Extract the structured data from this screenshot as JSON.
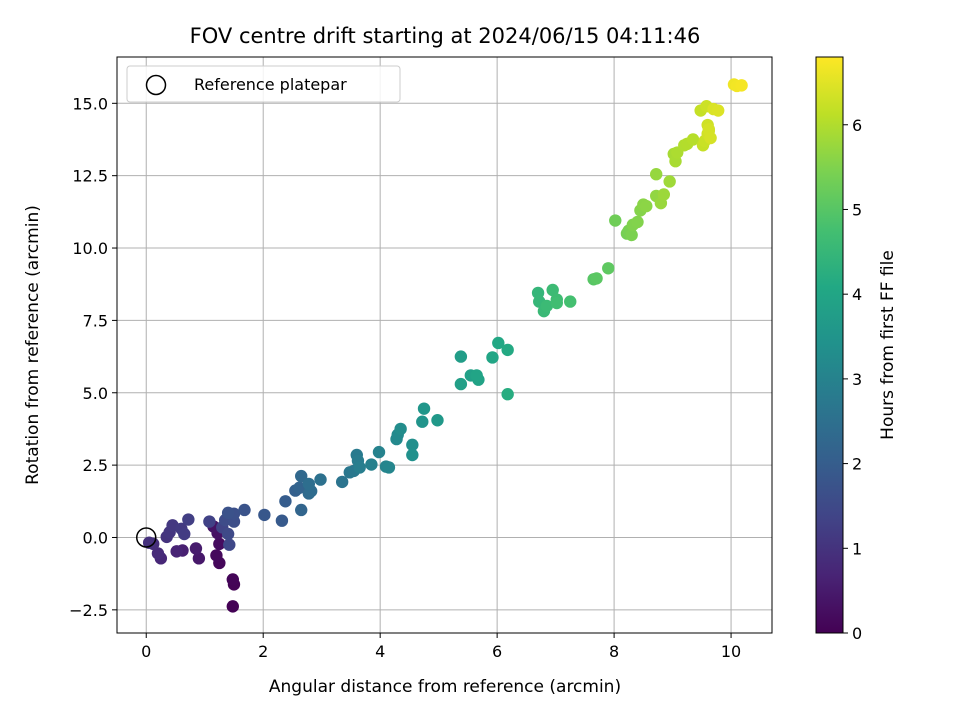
{
  "chart_data": {
    "type": "scatter",
    "title": "FOV centre drift starting at 2024/06/15 04:11:46",
    "xlabel": "Angular distance from reference (arcmin)",
    "ylabel": "Rotation from reference (arcmin)",
    "xlim": [
      -0.5,
      10.7
    ],
    "ylim": [
      -3.3,
      16.6
    ],
    "xticks": [
      "0",
      "2",
      "4",
      "6",
      "8",
      "10"
    ],
    "xtick_values": [
      0,
      2,
      4,
      6,
      8,
      10
    ],
    "yticks": [
      "−2.5",
      "0.0",
      "2.5",
      "5.0",
      "7.5",
      "10.0",
      "12.5",
      "15.0"
    ],
    "ytick_values": [
      -2.5,
      0,
      2.5,
      5,
      7.5,
      10,
      12.5,
      15
    ],
    "grid": true,
    "legend": {
      "position": "top-left",
      "label": "Reference platepar"
    },
    "reference_point": {
      "x": 0,
      "y": 0
    },
    "colorbar": {
      "label": "Hours from first FF file",
      "range": [
        0,
        6.8
      ],
      "ticks": [
        "0",
        "1",
        "2",
        "3",
        "4",
        "5",
        "6"
      ],
      "tick_values": [
        0,
        1,
        2,
        3,
        4,
        5,
        6
      ],
      "colormap": "viridis"
    },
    "points": [
      [
        1.48,
        -2.38,
        0.02
      ],
      [
        1.5,
        -1.62,
        0.05
      ],
      [
        1.48,
        -1.45,
        0.08
      ],
      [
        1.25,
        -0.88,
        0.12
      ],
      [
        1.2,
        -0.62,
        0.16
      ],
      [
        1.25,
        -0.22,
        0.22
      ],
      [
        1.22,
        0.15,
        0.3
      ],
      [
        1.15,
        0.38,
        0.36
      ],
      [
        0.9,
        -0.72,
        0.45
      ],
      [
        0.85,
        -0.38,
        0.52
      ],
      [
        0.62,
        -0.45,
        0.6
      ],
      [
        0.52,
        -0.48,
        0.68
      ],
      [
        0.25,
        -0.72,
        0.75
      ],
      [
        0.2,
        -0.55,
        0.82
      ],
      [
        0.12,
        -0.22,
        0.9
      ],
      [
        0.05,
        -0.18,
        0.95
      ],
      [
        0.35,
        0.02,
        1.0
      ],
      [
        0.4,
        0.18,
        1.05
      ],
      [
        0.45,
        0.42,
        1.1
      ],
      [
        0.6,
        0.3,
        1.15
      ],
      [
        0.65,
        0.12,
        1.2
      ],
      [
        0.72,
        0.62,
        1.25
      ],
      [
        1.08,
        0.55,
        1.32
      ],
      [
        1.3,
        0.35,
        1.38
      ],
      [
        1.42,
        -0.25,
        1.45
      ],
      [
        1.4,
        0.12,
        1.5
      ],
      [
        1.35,
        0.6,
        1.55
      ],
      [
        1.5,
        0.55,
        1.6
      ],
      [
        1.5,
        0.82,
        1.66
      ],
      [
        1.4,
        0.85,
        1.7
      ],
      [
        1.68,
        0.95,
        1.75
      ],
      [
        2.02,
        0.78,
        1.85
      ],
      [
        2.32,
        0.58,
        1.92
      ],
      [
        2.38,
        1.25,
        2.0
      ],
      [
        2.55,
        1.62,
        2.08
      ],
      [
        2.62,
        1.72,
        2.15
      ],
      [
        2.65,
        0.95,
        2.2
      ],
      [
        2.65,
        2.12,
        2.28
      ],
      [
        2.78,
        1.52,
        2.35
      ],
      [
        2.82,
        1.6,
        2.4
      ],
      [
        2.78,
        1.85,
        2.45
      ],
      [
        2.98,
        2.0,
        2.52
      ],
      [
        3.35,
        1.92,
        2.6
      ],
      [
        3.48,
        2.25,
        2.68
      ],
      [
        3.55,
        2.3,
        2.72
      ],
      [
        3.6,
        2.85,
        2.78
      ],
      [
        3.62,
        2.65,
        2.82
      ],
      [
        3.65,
        2.42,
        2.88
      ],
      [
        3.85,
        2.52,
        2.95
      ],
      [
        3.98,
        2.95,
        3.0
      ],
      [
        4.1,
        2.45,
        3.05
      ],
      [
        4.15,
        2.42,
        3.1
      ],
      [
        4.28,
        3.4,
        3.18
      ],
      [
        4.3,
        3.55,
        3.22
      ],
      [
        4.35,
        3.75,
        3.28
      ],
      [
        4.55,
        3.2,
        3.35
      ],
      [
        4.55,
        2.85,
        3.4
      ],
      [
        4.72,
        4.0,
        3.5
      ],
      [
        4.75,
        4.45,
        3.55
      ],
      [
        4.98,
        4.05,
        3.62
      ],
      [
        5.38,
        6.25,
        3.75
      ],
      [
        5.38,
        5.3,
        3.8
      ],
      [
        5.55,
        5.6,
        3.85
      ],
      [
        5.68,
        5.45,
        3.9
      ],
      [
        5.65,
        5.6,
        3.95
      ],
      [
        5.92,
        6.22,
        4.0
      ],
      [
        6.02,
        6.72,
        4.05
      ],
      [
        6.18,
        6.48,
        4.12
      ],
      [
        6.18,
        4.95,
        4.2
      ],
      [
        6.7,
        8.45,
        4.45
      ],
      [
        6.72,
        8.15,
        4.5
      ],
      [
        6.8,
        7.82,
        4.55
      ],
      [
        6.85,
        8.0,
        4.6
      ],
      [
        6.95,
        8.55,
        4.62
      ],
      [
        7.02,
        8.22,
        4.65
      ],
      [
        7.02,
        8.1,
        4.7
      ],
      [
        7.25,
        8.15,
        4.75
      ],
      [
        7.65,
        8.92,
        5.0
      ],
      [
        7.7,
        8.95,
        5.05
      ],
      [
        7.9,
        9.3,
        5.1
      ],
      [
        8.02,
        10.95,
        5.3
      ],
      [
        8.22,
        10.5,
        5.38
      ],
      [
        8.25,
        10.6,
        5.42
      ],
      [
        8.3,
        10.45,
        5.45
      ],
      [
        8.32,
        10.8,
        5.5
      ],
      [
        8.4,
        10.9,
        5.52
      ],
      [
        8.45,
        11.3,
        5.55
      ],
      [
        8.5,
        11.5,
        5.6
      ],
      [
        8.55,
        11.45,
        5.62
      ],
      [
        8.72,
        11.8,
        5.68
      ],
      [
        8.72,
        12.55,
        5.72
      ],
      [
        8.8,
        11.55,
        5.75
      ],
      [
        8.85,
        11.85,
        5.78
      ],
      [
        8.95,
        12.3,
        5.82
      ],
      [
        9.02,
        13.25,
        5.9
      ],
      [
        9.05,
        13.0,
        5.92
      ],
      [
        9.08,
        13.3,
        5.95
      ],
      [
        9.2,
        13.55,
        6.0
      ],
      [
        9.25,
        13.6,
        6.02
      ],
      [
        9.35,
        13.75,
        6.05
      ],
      [
        9.48,
        14.75,
        6.2
      ],
      [
        9.52,
        13.55,
        6.22
      ],
      [
        9.55,
        13.7,
        6.25
      ],
      [
        9.58,
        14.9,
        6.28
      ],
      [
        9.6,
        14.25,
        6.3
      ],
      [
        9.6,
        13.95,
        6.32
      ],
      [
        9.62,
        14.05,
        6.34
      ],
      [
        9.62,
        14.1,
        6.36
      ],
      [
        9.65,
        13.8,
        6.38
      ],
      [
        9.7,
        14.8,
        6.42
      ],
      [
        9.78,
        14.75,
        6.45
      ],
      [
        10.05,
        15.65,
        6.65
      ],
      [
        10.1,
        15.6,
        6.68
      ],
      [
        10.18,
        15.62,
        6.72
      ]
    ]
  }
}
